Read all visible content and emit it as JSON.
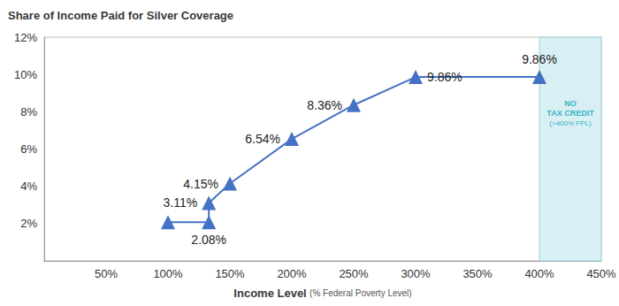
{
  "chart_data": {
    "type": "line",
    "title": "Share of Income Paid for Silver Coverage",
    "x_label": "Income Level",
    "x_label_note": "(% Federal Poverty Level)",
    "x": [
      100,
      133,
      133,
      150,
      200,
      250,
      300,
      400
    ],
    "values": [
      2.08,
      2.08,
      3.11,
      4.15,
      6.54,
      8.36,
      9.86,
      9.86
    ],
    "value_labels": [
      null,
      "2.08%",
      "3.11%",
      "4.15%",
      "6.54%",
      "8.36%",
      "9.86%",
      "9.86%"
    ],
    "data_labels": true,
    "color": "#4472c4",
    "marker": "triangle",
    "line_style": "solid",
    "xlim": [
      0,
      450
    ],
    "xticks": [
      {
        "value": 50,
        "label": "50%"
      },
      {
        "value": 100,
        "label": "100%"
      },
      {
        "value": 150,
        "label": "150%"
      },
      {
        "value": 200,
        "label": "200%"
      },
      {
        "value": 250,
        "label": "250%"
      },
      {
        "value": 300,
        "label": "300%"
      },
      {
        "value": 350,
        "label": "350%"
      },
      {
        "value": 400,
        "label": "400%"
      },
      {
        "value": 450,
        "label": "450%"
      }
    ],
    "ylim": [
      0,
      12
    ],
    "yticks": [
      {
        "value": 2,
        "label": "2%"
      },
      {
        "value": 4,
        "label": "4%"
      },
      {
        "value": 6,
        "label": "6%"
      },
      {
        "value": 8,
        "label": "8%"
      },
      {
        "value": 10,
        "label": "10%"
      },
      {
        "value": 12,
        "label": "12%"
      }
    ],
    "grid": false,
    "shaded_region": {
      "x_from": 400,
      "x_to": 450,
      "lines": [
        "NO",
        "TAX CREDIT",
        "(>400% FPL)"
      ]
    }
  }
}
